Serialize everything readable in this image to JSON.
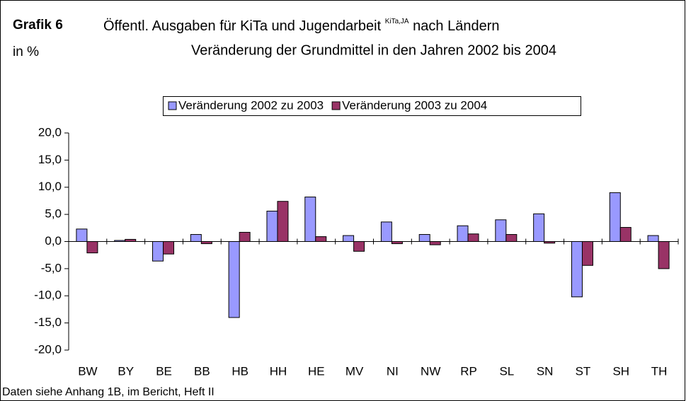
{
  "chart_data": {
    "type": "bar",
    "label": "Grafik 6",
    "title": "Öffentl. Ausgaben für KiTa und Jugendarbeit",
    "title_superscript": "KiTa,JA",
    "title_suffix": "nach  Ländern",
    "subtitle": "Veränderung der Grundmittel in den Jahren 2002 bis 2004",
    "ylabel": "in %",
    "footnote": "Daten siehe Anhang 1B, im Bericht, Heft II",
    "categories": [
      "BW",
      "BY",
      "BE",
      "BB",
      "HB",
      "HH",
      "HE",
      "MV",
      "NI",
      "NW",
      "RP",
      "SL",
      "SN",
      "ST",
      "SH",
      "TH"
    ],
    "series": [
      {
        "name": "Veränderung 2002 zu 2003",
        "color": "#9999ff",
        "values": [
          2.3,
          0.2,
          -3.6,
          1.3,
          -14.0,
          5.6,
          8.2,
          1.1,
          3.6,
          1.3,
          2.9,
          4.0,
          5.1,
          -10.2,
          9.0,
          1.1
        ]
      },
      {
        "name": "Veränderung 2003 zu 2004",
        "color": "#993366",
        "values": [
          -2.1,
          0.4,
          -2.3,
          -0.4,
          1.7,
          7.4,
          0.9,
          -1.8,
          -0.4,
          -0.6,
          1.4,
          1.3,
          -0.3,
          -4.4,
          2.6,
          -5.0
        ]
      }
    ],
    "ylim": [
      -20,
      20
    ],
    "yticks": [
      {
        "value": -20,
        "label": "-20,0"
      },
      {
        "value": -15,
        "label": "-15,0"
      },
      {
        "value": -10,
        "label": "-10,0"
      },
      {
        "value": -5,
        "label": "-5,0"
      },
      {
        "value": 0,
        "label": "0,0"
      },
      {
        "value": 5,
        "label": "5,0"
      },
      {
        "value": 10,
        "label": "10,0"
      },
      {
        "value": 15,
        "label": "15,0"
      },
      {
        "value": 20,
        "label": "20,0"
      }
    ],
    "legend": "top"
  }
}
